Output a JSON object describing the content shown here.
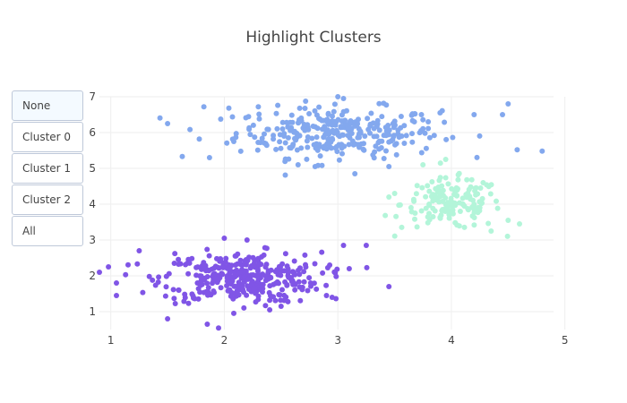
{
  "menu": {
    "buttons": [
      {
        "label": "None"
      },
      {
        "label": "Cluster 0"
      },
      {
        "label": "Cluster 1"
      },
      {
        "label": "Cluster 2"
      },
      {
        "label": "All"
      }
    ],
    "active": 0
  },
  "chart_data": {
    "type": "scatter",
    "title": "Highlight Clusters",
    "xlim": [
      0.9,
      4.9
    ],
    "ylim": [
      0.5,
      7.0
    ],
    "xticks": [
      1,
      2,
      3,
      4,
      5
    ],
    "yticks": [
      1,
      2,
      3,
      4,
      5,
      6,
      7
    ],
    "grid": true,
    "legend": "none",
    "series": [
      {
        "color": "#83a8ee",
        "center": [
          3.0,
          6.0
        ],
        "spread": [
          0.45,
          0.35
        ],
        "count": 300,
        "points": [
          [
            1.5,
            6.25
          ],
          [
            1.63,
            5.33
          ],
          [
            1.78,
            5.82
          ],
          [
            1.82,
            6.72
          ],
          [
            1.87,
            5.3
          ],
          [
            2.04,
            6.68
          ],
          [
            2.3,
            6.72
          ],
          [
            3.0,
            7.0
          ],
          [
            3.05,
            6.95
          ],
          [
            2.65,
            5.1
          ],
          [
            2.8,
            5.05
          ],
          [
            3.15,
            4.85
          ],
          [
            3.45,
            5.05
          ],
          [
            3.65,
            6.48
          ],
          [
            3.9,
            6.55
          ],
          [
            4.2,
            6.5
          ],
          [
            4.45,
            6.5
          ],
          [
            4.5,
            6.8
          ],
          [
            4.58,
            5.52
          ],
          [
            4.8,
            5.48
          ]
        ]
      },
      {
        "color": "#b3f5d9",
        "center": [
          4.0,
          4.0
        ],
        "spread": [
          0.22,
          0.35
        ],
        "count": 150,
        "points": [
          [
            3.45,
            4.2
          ],
          [
            3.5,
            4.3
          ],
          [
            3.75,
            5.1
          ],
          [
            3.95,
            5.25
          ],
          [
            4.18,
            4.68
          ],
          [
            4.28,
            4.6
          ],
          [
            4.6,
            3.45
          ],
          [
            4.35,
            3.25
          ],
          [
            4.5,
            3.55
          ],
          [
            3.68,
            3.75
          ]
        ]
      },
      {
        "color": "#8055e6",
        "center": [
          2.15,
          1.95
        ],
        "spread": [
          0.35,
          0.35
        ],
        "count": 350,
        "points": [
          [
            0.9,
            2.1
          ],
          [
            0.98,
            2.25
          ],
          [
            1.05,
            1.8
          ],
          [
            1.05,
            1.45
          ],
          [
            1.25,
            2.7
          ],
          [
            1.5,
            0.8
          ],
          [
            1.6,
            1.6
          ],
          [
            1.85,
            0.65
          ],
          [
            2.4,
            1.05
          ],
          [
            2.5,
            1.15
          ],
          [
            2.9,
            1.45
          ],
          [
            2.95,
            1.4
          ],
          [
            3.1,
            2.2
          ],
          [
            3.05,
            2.85
          ],
          [
            3.25,
            2.85
          ],
          [
            3.45,
            1.7
          ],
          [
            2.0,
            3.05
          ],
          [
            2.2,
            3.0
          ]
        ]
      }
    ]
  }
}
